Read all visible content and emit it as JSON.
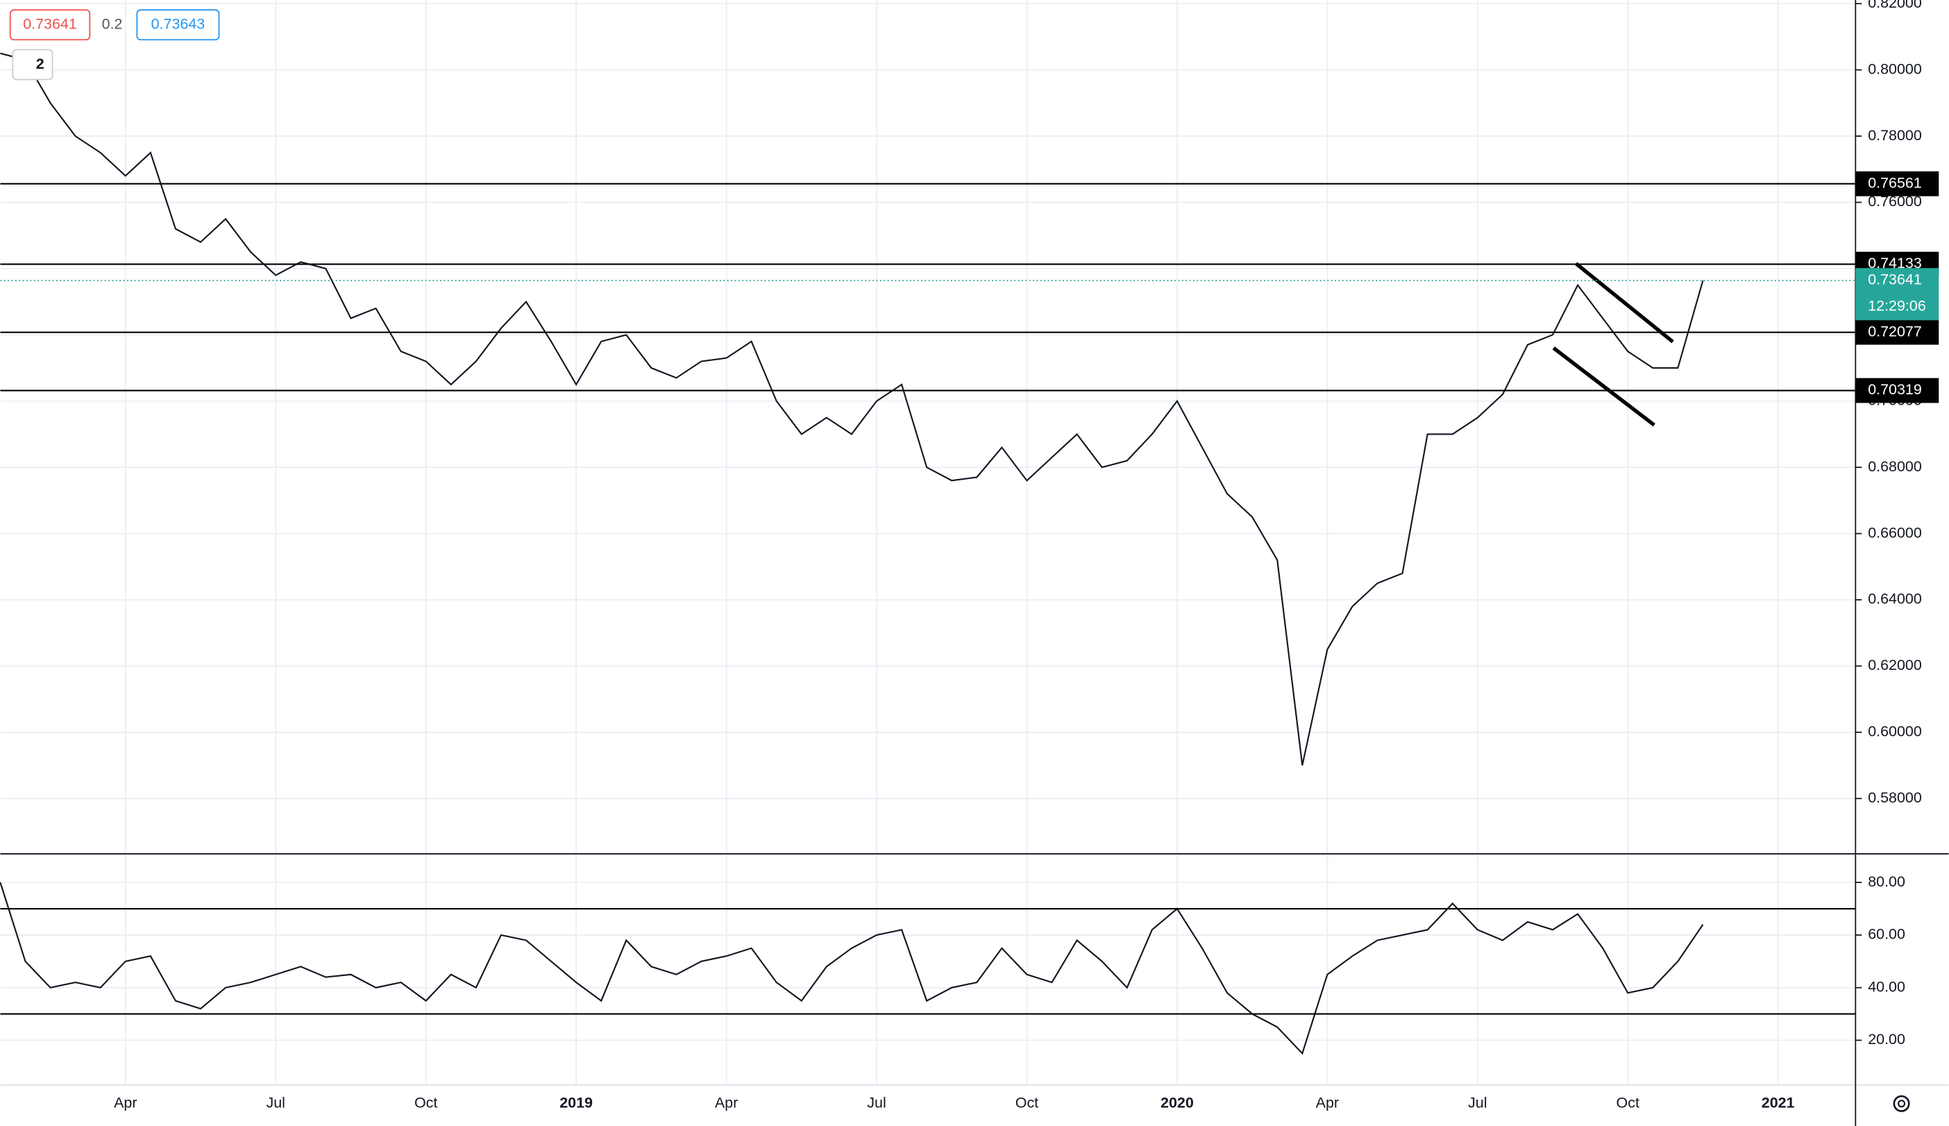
{
  "chart_data": [
    {
      "type": "line",
      "legend_values": [
        "0.73641",
        "0.2",
        "0.73643"
      ],
      "interval": "2",
      "countdown": "12:29:06",
      "color": "#131722",
      "categories": [
        null,
        null,
        null,
        null,
        null,
        "Apr",
        null,
        null,
        null,
        null,
        null,
        "Jul",
        null,
        null,
        null,
        null,
        null,
        "Oct",
        null,
        null,
        null,
        null,
        null,
        "2019",
        null,
        null,
        null,
        null,
        null,
        "Apr",
        null,
        null,
        null,
        null,
        null,
        "Jul",
        null,
        null,
        null,
        null,
        null,
        "Oct",
        null,
        null,
        null,
        null,
        null,
        "2020",
        null,
        null,
        null,
        null,
        null,
        "Apr",
        null,
        null,
        null,
        null,
        null,
        "Jul",
        null,
        null,
        null,
        null,
        null,
        "Oct",
        null,
        null,
        null,
        null,
        null,
        "2021",
        null,
        null,
        null
      ],
      "values": [
        0.805,
        0.803,
        0.79,
        0.78,
        0.775,
        0.768,
        0.775,
        0.752,
        0.748,
        0.755,
        0.745,
        0.738,
        0.742,
        0.74,
        0.725,
        0.728,
        0.715,
        0.712,
        0.705,
        0.712,
        0.722,
        0.73,
        0.718,
        0.705,
        0.718,
        0.72,
        0.71,
        0.707,
        0.712,
        0.713,
        0.718,
        0.7,
        0.69,
        0.695,
        0.69,
        0.7,
        0.705,
        0.68,
        0.676,
        0.677,
        0.686,
        0.676,
        0.683,
        0.69,
        0.68,
        0.682,
        0.69,
        0.7,
        0.686,
        0.672,
        0.665,
        0.652,
        0.59,
        0.625,
        0.638,
        0.645,
        0.648,
        0.69,
        0.69,
        0.695,
        0.702,
        0.717,
        0.72,
        0.735,
        0.725,
        0.715,
        0.71,
        0.71,
        0.7364,
        null,
        null,
        null,
        null,
        null,
        null
      ],
      "ylim": [
        0.5633,
        0.8211
      ],
      "yticks": [
        {
          "value": 0.58,
          "label": "0.58000"
        },
        {
          "value": 0.6,
          "label": "0.60000"
        },
        {
          "value": 0.62,
          "label": "0.62000"
        },
        {
          "value": 0.64,
          "label": "0.64000"
        },
        {
          "value": 0.66,
          "label": "0.66000"
        },
        {
          "value": 0.68,
          "label": "0.68000"
        },
        {
          "value": 0.7,
          "label": "0.70000"
        },
        {
          "value": 0.72,
          "label": "0.72000"
        },
        {
          "value": 0.74,
          "label": "0.74000"
        },
        {
          "value": 0.76,
          "label": "0.76000"
        },
        {
          "value": 0.78,
          "label": "0.78000"
        },
        {
          "value": 0.8,
          "label": "0.80000"
        },
        {
          "value": 0.82,
          "label": "0.82000"
        }
      ],
      "levels": [
        0.76561,
        0.74133,
        0.72077,
        0.70319
      ],
      "last_price": 0.73641,
      "last_price_color": "#26a69a",
      "grid": true
    },
    {
      "type": "line",
      "color": "#131722",
      "values": [
        80,
        50,
        40,
        42,
        40,
        50,
        52,
        35,
        32,
        40,
        42,
        45,
        48,
        44,
        45,
        40,
        42,
        35,
        45,
        40,
        60,
        58,
        50,
        42,
        35,
        58,
        48,
        45,
        50,
        52,
        55,
        42,
        35,
        48,
        55,
        60,
        62,
        35,
        40,
        42,
        55,
        45,
        42,
        58,
        50,
        40,
        62,
        70,
        55,
        38,
        30,
        25,
        15,
        45,
        52,
        58,
        60,
        62,
        72,
        62,
        58,
        65,
        62,
        68,
        55,
        38,
        40,
        50,
        64,
        null,
        null,
        null,
        null,
        null,
        null
      ],
      "ylim": [
        3,
        90.4
      ],
      "yticks": [
        {
          "value": 20,
          "label": "20.00"
        },
        {
          "value": 40,
          "label": "40.00"
        },
        {
          "value": 60,
          "label": "60.00"
        },
        {
          "value": 80,
          "label": "80.00"
        }
      ],
      "levels": [
        70,
        30
      ],
      "grid": true
    }
  ]
}
